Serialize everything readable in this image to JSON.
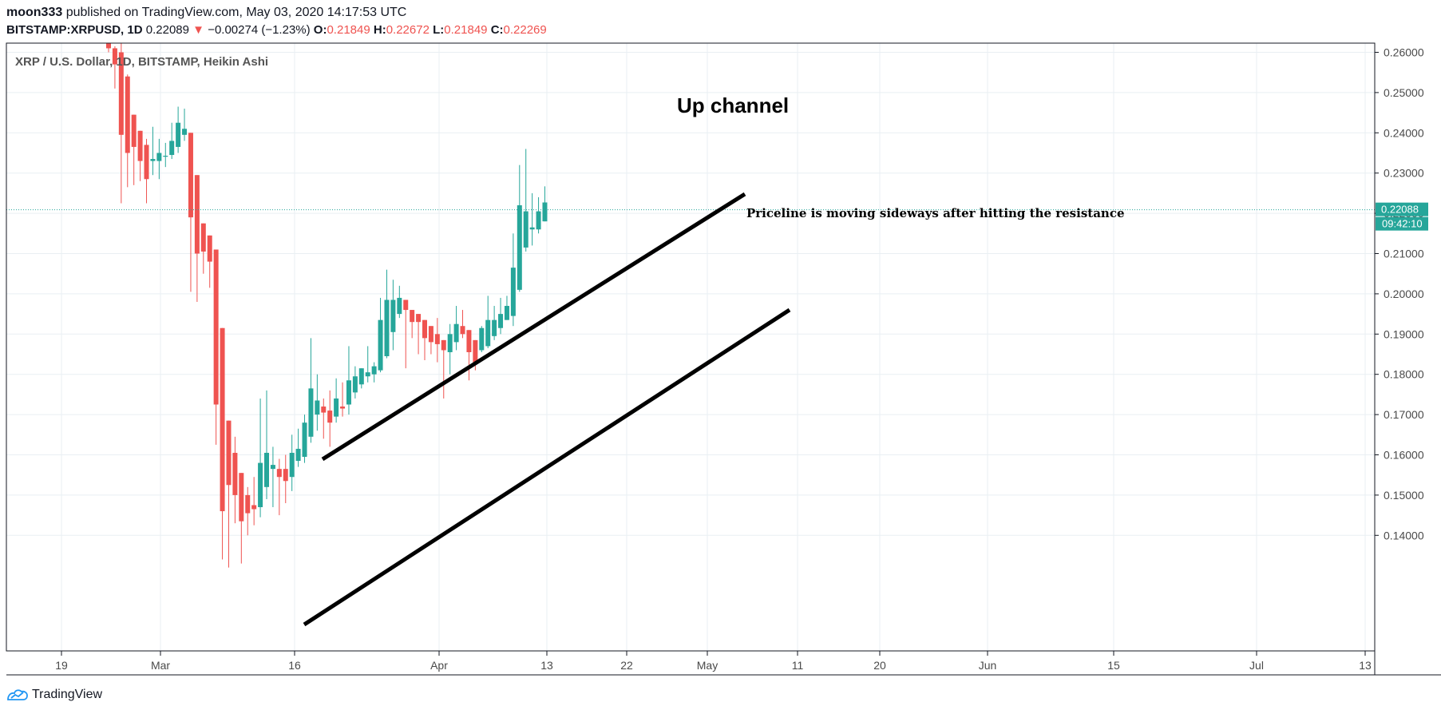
{
  "header": {
    "author": "moon333",
    "published_text": "published on TradingView.com, May 03, 2020 14:17:53 UTC",
    "symbol": "BITSTAMP:XRPUSD, 1D",
    "last": "0.22089",
    "change_arrow": "▼",
    "change": "−0.00274 (−1.23%)",
    "o_label": "O:",
    "o_value": "0.21849",
    "h_label": "H:",
    "h_value": "0.22672",
    "l_label": "L:",
    "l_value": "0.21849",
    "c_label": "C:",
    "c_value": "0.22269"
  },
  "footer": {
    "brand": "TradingView",
    "logo_icon": "tradingview-logo-icon"
  },
  "colors": {
    "up": "#26a69a",
    "down": "#ef5350",
    "grid": "#e9eff3",
    "axis": "#787b86",
    "trendline": "#000000"
  },
  "chart_data": {
    "type": "candlestick",
    "title": "XRP / U.S. Dollar, 1D, BITSTAMP, Heikin Ashi",
    "ylim": [
      0.1333,
      0.2645
    ],
    "y_ticks": [
      "0.14000",
      "0.15000",
      "0.16000",
      "0.17000",
      "0.18000",
      "0.19000",
      "0.20000",
      "0.21000",
      "0.22000",
      "0.23000",
      "0.24000",
      "0.25000",
      "0.26000"
    ],
    "x_ticks": [
      "19",
      "Mar",
      "16",
      "Apr",
      "13",
      "22",
      "May",
      "11",
      "20",
      "Jun",
      "15",
      "Jul",
      "13"
    ],
    "price_label": "0.22088",
    "price_line_value": 0.22088,
    "countdown_label": "09:42:10",
    "candles": [
      {
        "o": 0.2635,
        "h": 0.2655,
        "l": 0.26,
        "c": 0.261
      },
      {
        "o": 0.261,
        "h": 0.2615,
        "l": 0.251,
        "c": 0.257
      },
      {
        "o": 0.26,
        "h": 0.263,
        "l": 0.2225,
        "c": 0.2395
      },
      {
        "o": 0.254,
        "h": 0.2545,
        "l": 0.2265,
        "c": 0.235
      },
      {
        "o": 0.2445,
        "h": 0.2445,
        "l": 0.227,
        "c": 0.2365
      },
      {
        "o": 0.2405,
        "h": 0.2405,
        "l": 0.228,
        "c": 0.233
      },
      {
        "o": 0.237,
        "h": 0.2385,
        "l": 0.2225,
        "c": 0.2285
      },
      {
        "o": 0.233,
        "h": 0.2415,
        "l": 0.2295,
        "c": 0.2335
      },
      {
        "o": 0.233,
        "h": 0.2385,
        "l": 0.2285,
        "c": 0.235
      },
      {
        "o": 0.2343,
        "h": 0.2375,
        "l": 0.2315,
        "c": 0.2343
      },
      {
        "o": 0.2345,
        "h": 0.2425,
        "l": 0.2335,
        "c": 0.238
      },
      {
        "o": 0.2365,
        "h": 0.2465,
        "l": 0.235,
        "c": 0.2425
      },
      {
        "o": 0.2395,
        "h": 0.246,
        "l": 0.238,
        "c": 0.241
      },
      {
        "o": 0.24,
        "h": 0.24,
        "l": 0.2005,
        "c": 0.219
      },
      {
        "o": 0.2295,
        "h": 0.2295,
        "l": 0.198,
        "c": 0.21
      },
      {
        "o": 0.2175,
        "h": 0.2175,
        "l": 0.205,
        "c": 0.2105
      },
      {
        "o": 0.2145,
        "h": 0.2145,
        "l": 0.2015,
        "c": 0.208
      },
      {
        "o": 0.211,
        "h": 0.211,
        "l": 0.1625,
        "c": 0.1725
      },
      {
        "o": 0.1915,
        "h": 0.1915,
        "l": 0.134,
        "c": 0.146
      },
      {
        "o": 0.1685,
        "h": 0.1685,
        "l": 0.132,
        "c": 0.1525
      },
      {
        "o": 0.1605,
        "h": 0.1645,
        "l": 0.143,
        "c": 0.15
      },
      {
        "o": 0.1555,
        "h": 0.1555,
        "l": 0.133,
        "c": 0.1435
      },
      {
        "o": 0.15,
        "h": 0.152,
        "l": 0.14,
        "c": 0.1455
      },
      {
        "o": 0.1475,
        "h": 0.1545,
        "l": 0.1425,
        "c": 0.1465
      },
      {
        "o": 0.147,
        "h": 0.174,
        "l": 0.1445,
        "c": 0.158
      },
      {
        "o": 0.152,
        "h": 0.176,
        "l": 0.149,
        "c": 0.1605
      },
      {
        "o": 0.1565,
        "h": 0.162,
        "l": 0.147,
        "c": 0.1575
      },
      {
        "o": 0.1565,
        "h": 0.159,
        "l": 0.145,
        "c": 0.1545
      },
      {
        "o": 0.1565,
        "h": 0.16,
        "l": 0.148,
        "c": 0.1535
      },
      {
        "o": 0.1545,
        "h": 0.165,
        "l": 0.151,
        "c": 0.1605
      },
      {
        "o": 0.1585,
        "h": 0.1665,
        "l": 0.157,
        "c": 0.1615
      },
      {
        "o": 0.1595,
        "h": 0.17,
        "l": 0.158,
        "c": 0.168
      },
      {
        "o": 0.1645,
        "h": 0.189,
        "l": 0.163,
        "c": 0.1765
      },
      {
        "o": 0.17,
        "h": 0.18,
        "l": 0.166,
        "c": 0.1735
      },
      {
        "o": 0.172,
        "h": 0.174,
        "l": 0.164,
        "c": 0.1705
      },
      {
        "o": 0.171,
        "h": 0.176,
        "l": 0.162,
        "c": 0.168
      },
      {
        "o": 0.1695,
        "h": 0.179,
        "l": 0.168,
        "c": 0.174
      },
      {
        "o": 0.172,
        "h": 0.178,
        "l": 0.1695,
        "c": 0.1715
      },
      {
        "o": 0.1725,
        "h": 0.187,
        "l": 0.17,
        "c": 0.1785
      },
      {
        "o": 0.1755,
        "h": 0.182,
        "l": 0.174,
        "c": 0.1795
      },
      {
        "o": 0.1775,
        "h": 0.1815,
        "l": 0.1765,
        "c": 0.1815
      },
      {
        "o": 0.1795,
        "h": 0.187,
        "l": 0.178,
        "c": 0.1805
      },
      {
        "o": 0.18,
        "h": 0.183,
        "l": 0.178,
        "c": 0.182
      },
      {
        "o": 0.181,
        "h": 0.199,
        "l": 0.1805,
        "c": 0.1935
      },
      {
        "o": 0.1845,
        "h": 0.206,
        "l": 0.184,
        "c": 0.1985
      },
      {
        "o": 0.1905,
        "h": 0.2035,
        "l": 0.186,
        "c": 0.1985
      },
      {
        "o": 0.195,
        "h": 0.202,
        "l": 0.194,
        "c": 0.199
      },
      {
        "o": 0.1985,
        "h": 0.1985,
        "l": 0.1815,
        "c": 0.196
      },
      {
        "o": 0.196,
        "h": 0.196,
        "l": 0.189,
        "c": 0.193
      },
      {
        "o": 0.195,
        "h": 0.195,
        "l": 0.185,
        "c": 0.193
      },
      {
        "o": 0.1935,
        "h": 0.1935,
        "l": 0.1835,
        "c": 0.189
      },
      {
        "o": 0.192,
        "h": 0.192,
        "l": 0.185,
        "c": 0.188
      },
      {
        "o": 0.19,
        "h": 0.194,
        "l": 0.183,
        "c": 0.1875
      },
      {
        "o": 0.1885,
        "h": 0.1885,
        "l": 0.174,
        "c": 0.186
      },
      {
        "o": 0.1855,
        "h": 0.1925,
        "l": 0.18,
        "c": 0.19
      },
      {
        "o": 0.188,
        "h": 0.197,
        "l": 0.186,
        "c": 0.1925
      },
      {
        "o": 0.192,
        "h": 0.196,
        "l": 0.189,
        "c": 0.19
      },
      {
        "o": 0.191,
        "h": 0.191,
        "l": 0.1785,
        "c": 0.1855
      },
      {
        "o": 0.1885,
        "h": 0.1885,
        "l": 0.181,
        "c": 0.183
      },
      {
        "o": 0.186,
        "h": 0.192,
        "l": 0.1855,
        "c": 0.1915
      },
      {
        "o": 0.187,
        "h": 0.1995,
        "l": 0.1865,
        "c": 0.1935
      },
      {
        "o": 0.1895,
        "h": 0.197,
        "l": 0.1885,
        "c": 0.1935
      },
      {
        "o": 0.1915,
        "h": 0.199,
        "l": 0.19,
        "c": 0.195
      },
      {
        "o": 0.1935,
        "h": 0.1995,
        "l": 0.1935,
        "c": 0.197
      },
      {
        "o": 0.1945,
        "h": 0.215,
        "l": 0.192,
        "c": 0.2065
      },
      {
        "o": 0.201,
        "h": 0.232,
        "l": 0.2005,
        "c": 0.222
      },
      {
        "o": 0.2115,
        "h": 0.236,
        "l": 0.2105,
        "c": 0.2205
      },
      {
        "o": 0.216,
        "h": 0.225,
        "l": 0.212,
        "c": 0.2165
      },
      {
        "o": 0.216,
        "h": 0.224,
        "l": 0.215,
        "c": 0.2205
      },
      {
        "o": 0.218,
        "h": 0.2267,
        "l": 0.218,
        "c": 0.2227
      }
    ]
  },
  "annotations": {
    "channel_title": "Up channel",
    "note": "Priceline is moving sideways after hitting the resistance"
  }
}
